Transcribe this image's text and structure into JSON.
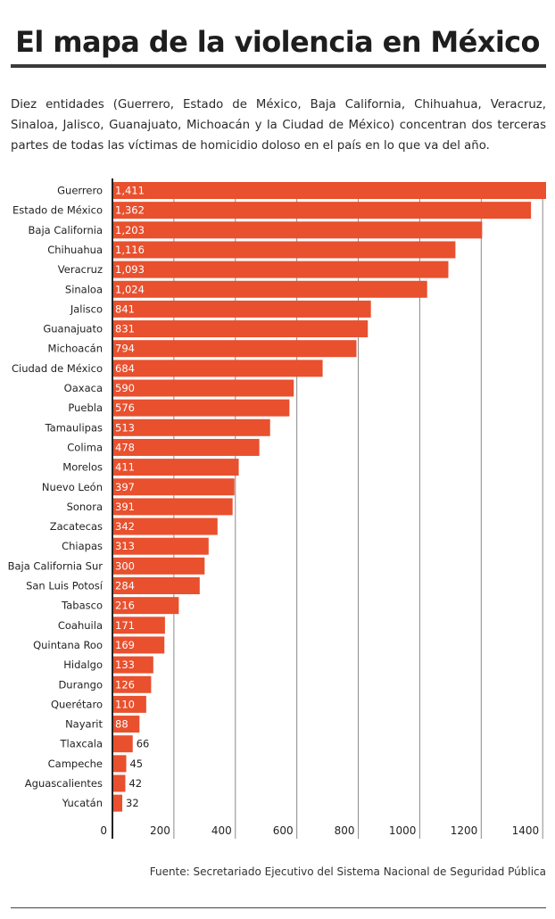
{
  "title": "El mapa de la violencia en México",
  "intro": "Diez entidades (Guerrero, Estado de México, Baja California, Chihuahua, Veracruz, Sinaloa, Jalisco, Guanajuato, Michoacán y la Ciudad de México) concentran dos terceras partes de todas las víctimas de homicidio doloso en el país en lo que va del año.",
  "source": "Fuente: Secretariado Ejecutivo del Sistema Nacional de Seguridad Pública",
  "colors": {
    "bar": "#e8502e",
    "label_inside": "#ffffff",
    "label_outside": "#222222",
    "grid": "#8a8a8a",
    "axis": "#222222"
  },
  "chart_data": {
    "type": "bar",
    "orientation": "horizontal",
    "categories": [
      "Guerrero",
      "Estado de México",
      "Baja California",
      "Chihuahua",
      "Veracruz",
      "Sinaloa",
      "Jalisco",
      "Guanajuato",
      "Michoacán",
      "Ciudad de México",
      "Oaxaca",
      "Puebla",
      "Tamaulipas",
      "Colima",
      "Morelos",
      "Nuevo León",
      "Sonora",
      "Zacatecas",
      "Chiapas",
      "Baja California Sur",
      "San Luis Potosí",
      "Tabasco",
      "Coahuila",
      "Quintana Roo",
      "Hidalgo",
      "Durango",
      "Querétaro",
      "Nayarit",
      "Tlaxcala",
      "Campeche",
      "Aguascalientes",
      "Yucatán"
    ],
    "values": [
      1411,
      1362,
      1203,
      1116,
      1093,
      1024,
      841,
      831,
      794,
      684,
      590,
      576,
      513,
      478,
      411,
      397,
      391,
      342,
      313,
      300,
      284,
      216,
      171,
      169,
      133,
      126,
      110,
      88,
      66,
      45,
      42,
      32
    ],
    "value_labels": [
      "1,411",
      "1,362",
      "1,203",
      "1,116",
      "1,093",
      "1,024",
      "841",
      "831",
      "794",
      "684",
      "590",
      "576",
      "513",
      "478",
      "411",
      "397",
      "391",
      "342",
      "313",
      "300",
      "284",
      "216",
      "171",
      "169",
      "133",
      "126",
      "110",
      "88",
      "66",
      "45",
      "42",
      "32"
    ],
    "xlim": [
      0,
      1411
    ],
    "xticks": [
      0,
      200,
      400,
      600,
      800,
      1000,
      1200,
      1400
    ],
    "xtick_labels": [
      "0",
      "200",
      "400",
      "600",
      "800",
      "1000",
      "1200",
      "1400"
    ],
    "grid": true,
    "xlabel": "",
    "ylabel": ""
  }
}
